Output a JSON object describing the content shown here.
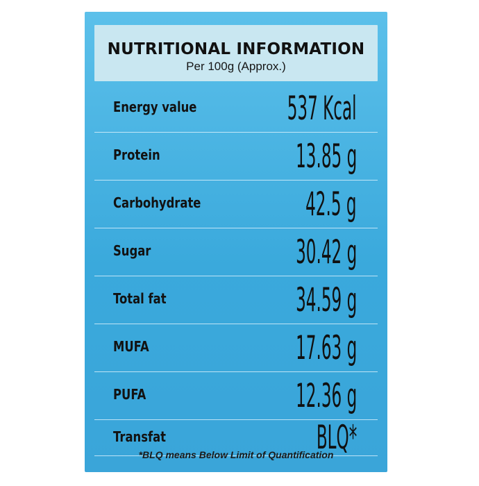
{
  "header": {
    "title": "NUTRITIONAL INFORMATION",
    "subtitle": "Per 100g (Approx.)"
  },
  "rows": [
    {
      "label": "Energy value",
      "value": "537 Kcal"
    },
    {
      "label": "Protein",
      "value": "13.85 g"
    },
    {
      "label": "Carbohydrate",
      "value": "42.5 g"
    },
    {
      "label": "Sugar",
      "value": "30.42 g"
    },
    {
      "label": "Total fat",
      "value": "34.59 g"
    },
    {
      "label": "MUFA",
      "value": "17.63 g"
    },
    {
      "label": "PUFA",
      "value": "12.36 g"
    },
    {
      "label": "Transfat",
      "value": "BLQ*"
    }
  ],
  "footnote": "*BLQ means Below Limit of Quantification",
  "colors": {
    "panel": "#3aa9dc",
    "header_band": "#c9e7f1",
    "text": "#111111"
  }
}
